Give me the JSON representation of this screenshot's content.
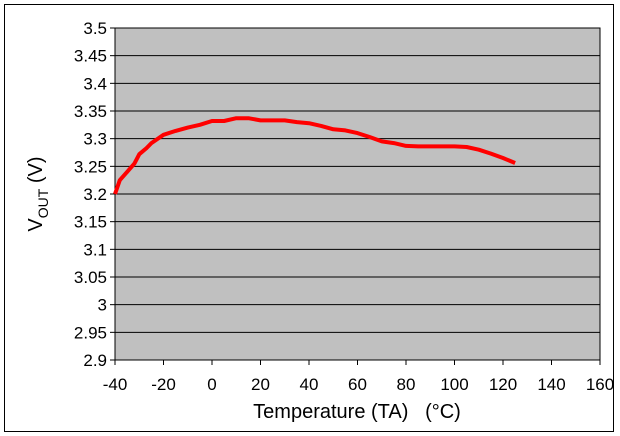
{
  "chart_data": {
    "type": "line",
    "title": "",
    "xlabel": "Temperature (TA)   (°C)",
    "ylabel_main": "V",
    "ylabel_sub": "OUT",
    "ylabel_unit": " (V)",
    "xlim": [
      -40,
      160
    ],
    "ylim": [
      2.9,
      3.5
    ],
    "x_ticks": [
      -40,
      -20,
      0,
      20,
      40,
      60,
      80,
      100,
      120,
      140,
      160
    ],
    "x_tick_labels": [
      "-40",
      "-20",
      "0",
      "20",
      "40",
      "60",
      "80",
      "100",
      "120",
      "140",
      "160"
    ],
    "y_ticks": [
      2.9,
      2.95,
      3.0,
      3.05,
      3.1,
      3.15,
      3.2,
      3.25,
      3.3,
      3.35,
      3.4,
      3.45,
      3.5
    ],
    "y_tick_labels": [
      "2.9",
      "2.95",
      "3",
      "3.05",
      "3.1",
      "3.15",
      "3.2",
      "3.25",
      "3.3",
      "3.35",
      "3.4",
      "3.45",
      "3.5"
    ],
    "grid": true,
    "plot_background": "#c0c0c0",
    "series": [
      {
        "color": "#ff0000",
        "x": [
          -40,
          -38,
          -35,
          -32,
          -30,
          -27,
          -25,
          -20,
          -15,
          -10,
          -5,
          0,
          5,
          10,
          15,
          20,
          25,
          30,
          35,
          40,
          45,
          50,
          55,
          60,
          65,
          70,
          75,
          80,
          85,
          90,
          95,
          100,
          105,
          110,
          115,
          120,
          125
        ],
        "y": [
          3.2,
          3.225,
          3.24,
          3.255,
          3.272,
          3.283,
          3.292,
          3.307,
          3.314,
          3.32,
          3.325,
          3.332,
          3.332,
          3.337,
          3.337,
          3.333,
          3.333,
          3.333,
          3.33,
          3.328,
          3.323,
          3.317,
          3.315,
          3.31,
          3.303,
          3.295,
          3.292,
          3.287,
          3.286,
          3.286,
          3.286,
          3.286,
          3.285,
          3.28,
          3.273,
          3.265,
          3.256
        ]
      }
    ]
  }
}
